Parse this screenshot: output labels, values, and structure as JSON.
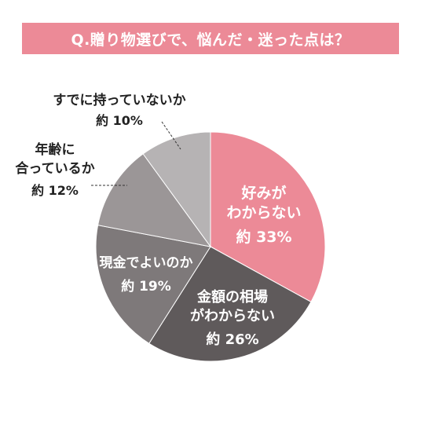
{
  "title": "Q.贈り物選びで、悩んだ・迷った点は？",
  "colors": {
    "title_bg": "#ec8a97",
    "slice_1": "#ec8a97",
    "slice_2": "#5f5a5b",
    "slice_3": "#7e797a",
    "slice_4": "#9b9697",
    "slice_5": "#b6b3b4",
    "label_inside": "#ffffff",
    "label_outside": "#222222",
    "leader": "#333333"
  },
  "chart_data": {
    "type": "pie",
    "start": "12 o'clock",
    "direction": "clockwise",
    "slices": [
      {
        "name": "好みがわからない",
        "lines": [
          "好みが",
          "わからない"
        ],
        "percent_label": "約 33%",
        "value": 33,
        "label_position": "inside"
      },
      {
        "name": "金額の相場がわからない",
        "lines": [
          "金額の相場",
          "がわからない"
        ],
        "percent_label": "約 26%",
        "value": 26,
        "label_position": "inside"
      },
      {
        "name": "現金でよいのか",
        "lines": [
          "現金でよいのか"
        ],
        "percent_label": "約 19%",
        "value": 19,
        "label_position": "inside"
      },
      {
        "name": "年齢に合っているか",
        "lines": [
          "年齢に",
          "合っているか"
        ],
        "percent_label": "約 12%",
        "value": 12,
        "label_position": "outside"
      },
      {
        "name": "すでに持っていないか",
        "lines": [
          "すでに持っていないか"
        ],
        "percent_label": "約 10%",
        "value": 10,
        "label_position": "outside"
      }
    ]
  }
}
